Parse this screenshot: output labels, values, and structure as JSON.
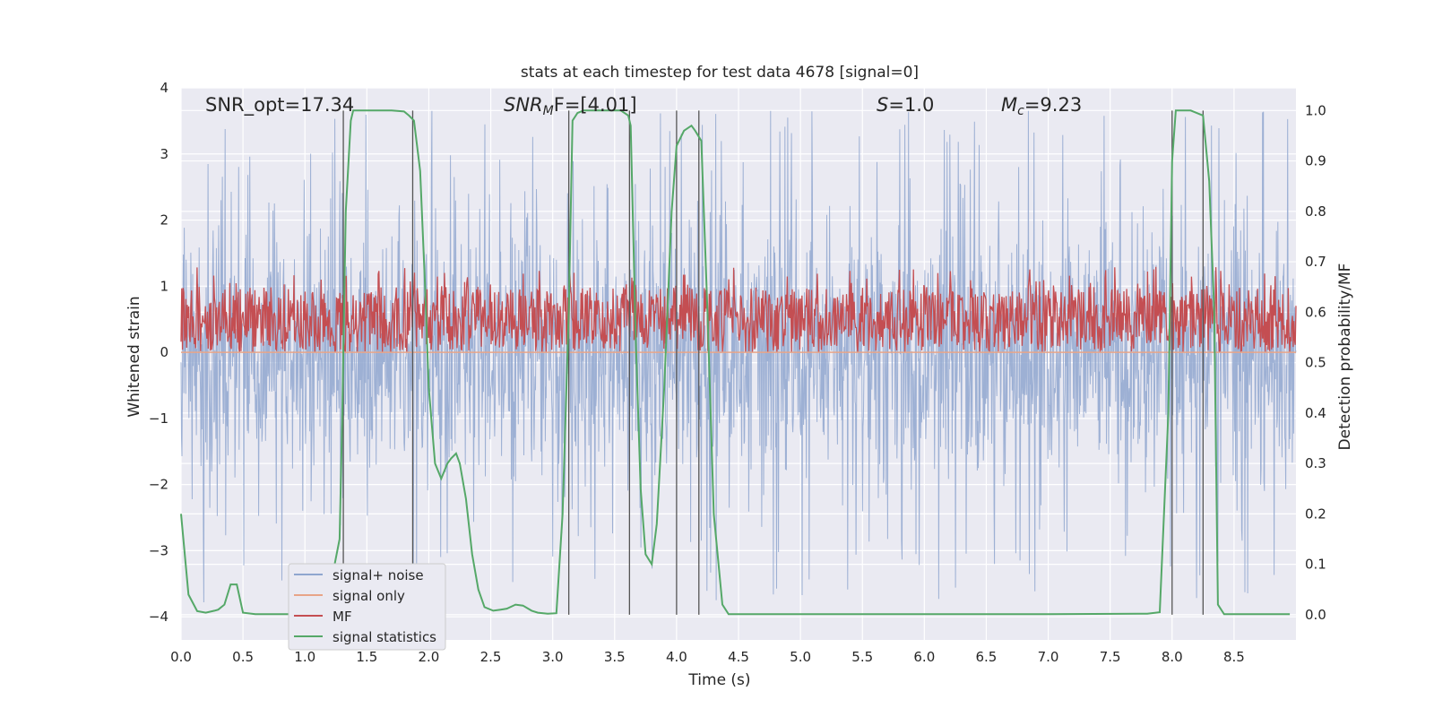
{
  "chart_data": {
    "type": "line",
    "title": "stats at each timestep for test data 4678 [signal=0]",
    "xlabel": "Time (s)",
    "ylabel_left": "Whitened strain",
    "ylabel_right": "Detection probability/MF",
    "xlim": [
      0,
      9
    ],
    "ylim_left": [
      -4.35,
      4
    ],
    "ylim_right": [
      -0.05,
      1.045
    ],
    "xticks": [
      "0.0",
      "0.5",
      "1.0",
      "1.5",
      "2.0",
      "2.5",
      "3.0",
      "3.5",
      "4.0",
      "4.5",
      "5.0",
      "5.5",
      "6.0",
      "6.5",
      "7.0",
      "7.5",
      "8.0",
      "8.5"
    ],
    "yticks_left": [
      "4",
      "3",
      "2",
      "1",
      "0",
      "−1",
      "−2",
      "−3",
      "−4"
    ],
    "yticks_right": [
      "1.0",
      "0.9",
      "0.8",
      "0.7",
      "0.6",
      "0.5",
      "0.4",
      "0.3",
      "0.2",
      "0.1",
      "0.0"
    ],
    "grid": true,
    "legend_position": "lower-left",
    "annotations": {
      "snr_opt": "SNR_opt=17.34",
      "snr_mf_base": "SNR",
      "snr_mf_sub": "M",
      "snr_mf_rest": "F=[4.01]",
      "s_base": "S",
      "s_rest": "=1.0",
      "mc_base": "M",
      "mc_sub": "c",
      "mc_rest": "=9.23"
    },
    "series": [
      {
        "name": "signal+ noise",
        "color": "#8fa6cf",
        "axis": "left",
        "description_values": {
          "band": [
            -1.7,
            1.7
          ],
          "spikes_to": [
            -4.0,
            3.65
          ]
        }
      },
      {
        "name": "signal only",
        "color": "#e8a588",
        "axis": "left",
        "values_constant": 0.0
      },
      {
        "name": "MF",
        "color": "#c44e52",
        "axis": "right",
        "band": [
          0.52,
          0.65
        ]
      },
      {
        "name": "signal statistics",
        "color": "#55a868",
        "axis": "right",
        "x": [
          0.0,
          0.06,
          0.13,
          0.2,
          0.27,
          0.3,
          0.35,
          0.4,
          0.45,
          0.5,
          0.6,
          0.8,
          1.0,
          1.2,
          1.28,
          1.3,
          1.33,
          1.37,
          1.39,
          1.5,
          1.7,
          1.8,
          1.84,
          1.88,
          1.93,
          1.97,
          2.0,
          2.05,
          2.1,
          2.15,
          2.18,
          2.22,
          2.25,
          2.3,
          2.35,
          2.4,
          2.45,
          2.52,
          2.58,
          2.63,
          2.7,
          2.76,
          2.83,
          2.88,
          2.96,
          3.03,
          3.08,
          3.13,
          3.16,
          3.2,
          3.25,
          3.4,
          3.55,
          3.61,
          3.63,
          3.67,
          3.71,
          3.75,
          3.8,
          3.84,
          3.9,
          3.96,
          4.0,
          4.06,
          4.12,
          4.15,
          4.2,
          4.25,
          4.3,
          4.37,
          4.42,
          5.0,
          6.0,
          7.0,
          7.8,
          7.9,
          7.97,
          8.0,
          8.03,
          8.07,
          8.1,
          8.15,
          8.25,
          8.3,
          8.34,
          8.37,
          8.42,
          8.5,
          8.7,
          8.95
        ],
        "y": [
          0.2,
          0.04,
          0.007,
          0.004,
          0.008,
          0.01,
          0.02,
          0.06,
          0.06,
          0.004,
          0.001,
          0.001,
          0.001,
          0.05,
          0.15,
          0.38,
          0.8,
          0.98,
          1.0,
          1.0,
          1.0,
          0.998,
          0.99,
          0.98,
          0.88,
          0.65,
          0.45,
          0.3,
          0.27,
          0.3,
          0.31,
          0.32,
          0.3,
          0.23,
          0.12,
          0.05,
          0.015,
          0.008,
          0.01,
          0.012,
          0.02,
          0.018,
          0.008,
          0.004,
          0.002,
          0.003,
          0.2,
          0.6,
          0.98,
          0.995,
          1.0,
          1.0,
          1.0,
          0.99,
          0.97,
          0.55,
          0.25,
          0.12,
          0.1,
          0.18,
          0.45,
          0.8,
          0.93,
          0.96,
          0.97,
          0.96,
          0.94,
          0.6,
          0.2,
          0.02,
          0.001,
          0.001,
          0.001,
          0.001,
          0.002,
          0.005,
          0.4,
          0.9,
          1.0,
          1.0,
          1.0,
          1.0,
          0.99,
          0.86,
          0.6,
          0.02,
          0.001,
          0.001,
          0.001,
          0.001
        ]
      }
    ],
    "vertical_lines_x": [
      1.31,
      1.87,
      3.13,
      3.62,
      4.0,
      4.18,
      8.0,
      8.25
    ]
  }
}
